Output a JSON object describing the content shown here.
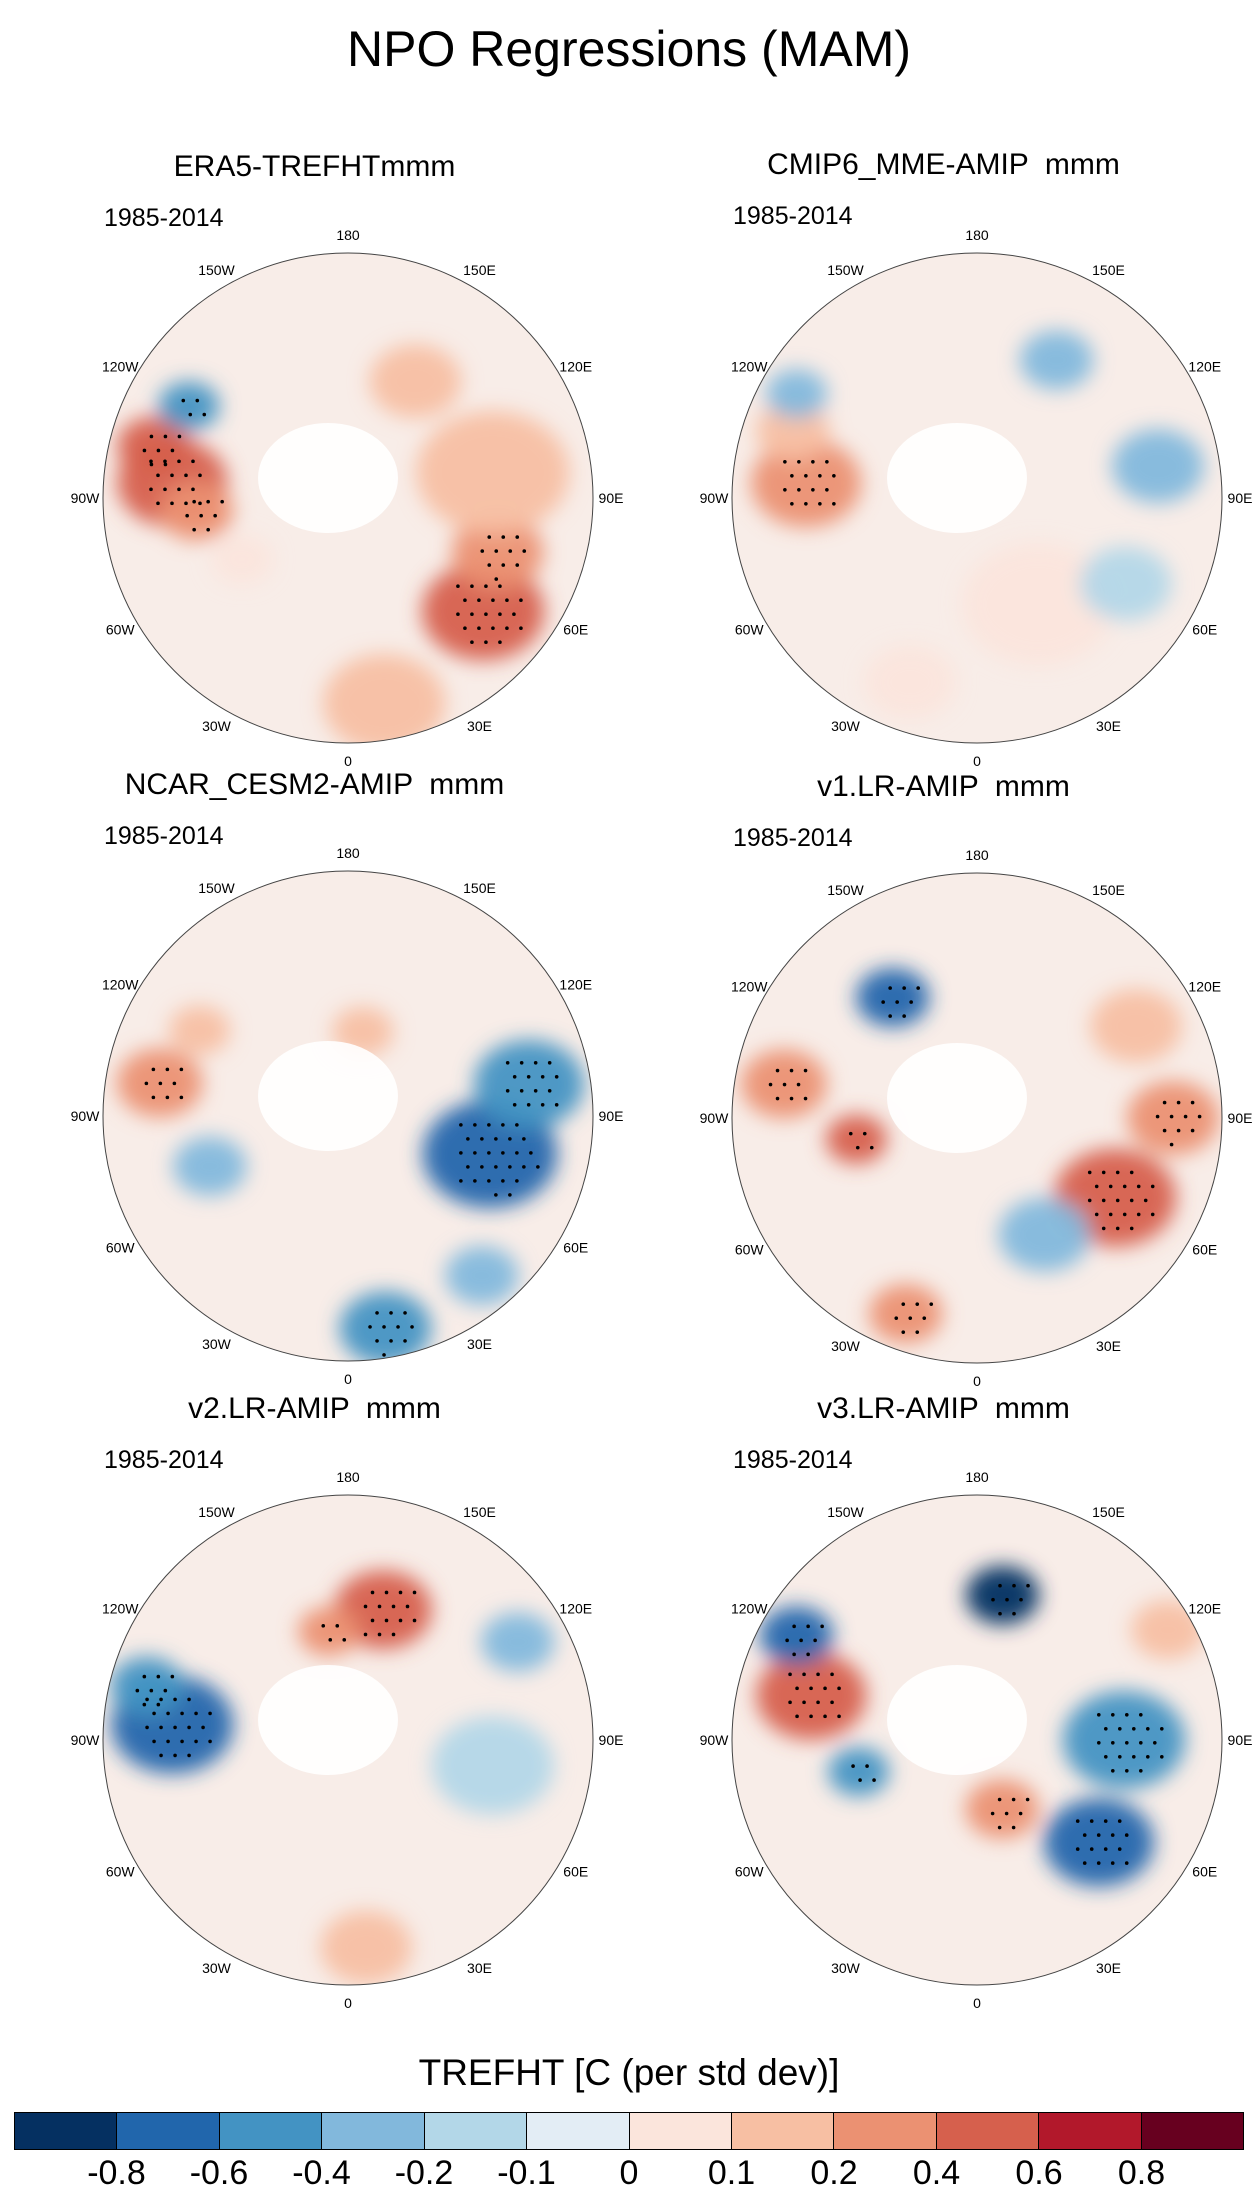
{
  "title": "NPO Regressions (MAM)",
  "panels": [
    {
      "id": "p1",
      "title": "ERA5-TREFHTmmm",
      "years": "1985-2014",
      "blobs": [
        {
          "lon": -95,
          "r": 0.72,
          "rad": 0.18,
          "v": 0.6
        },
        {
          "lon": -105,
          "r": 0.82,
          "rad": 0.12,
          "v": 0.6
        },
        {
          "lon": -85,
          "r": 0.62,
          "rad": 0.12,
          "v": 0.4
        },
        {
          "lon": -120,
          "r": 0.75,
          "rad": 0.1,
          "v": -0.4
        },
        {
          "lon": 50,
          "r": 0.72,
          "rad": 0.2,
          "v": 0.6
        },
        {
          "lon": 70,
          "r": 0.65,
          "rad": 0.15,
          "v": 0.4
        },
        {
          "lon": 100,
          "r": 0.6,
          "rad": 0.25,
          "v": 0.2
        },
        {
          "lon": 10,
          "r": 0.85,
          "rad": 0.2,
          "v": 0.2
        },
        {
          "lon": 150,
          "r": 0.55,
          "rad": 0.15,
          "v": 0.2
        },
        {
          "lon": -60,
          "r": 0.5,
          "rad": 0.1,
          "v": 0.1
        }
      ]
    },
    {
      "id": "p2",
      "title": "CMIP6_MME-AMIP  mmm",
      "years": "1985-2014",
      "blobs": [
        {
          "lon": -95,
          "r": 0.7,
          "rad": 0.18,
          "v": 0.4
        },
        {
          "lon": -110,
          "r": 0.8,
          "rad": 0.12,
          "v": 0.2
        },
        {
          "lon": -120,
          "r": 0.85,
          "rad": 0.1,
          "v": -0.2
        },
        {
          "lon": 150,
          "r": 0.65,
          "rad": 0.12,
          "v": -0.2
        },
        {
          "lon": 100,
          "r": 0.75,
          "rad": 0.15,
          "v": -0.2
        },
        {
          "lon": 30,
          "r": 0.5,
          "rad": 0.25,
          "v": 0.1
        },
        {
          "lon": 60,
          "r": 0.7,
          "rad": 0.15,
          "v": -0.1
        },
        {
          "lon": -20,
          "r": 0.8,
          "rad": 0.15,
          "v": 0.1
        }
      ]
    },
    {
      "id": "p3",
      "title": "NCAR_CESM2-AMIP  mmm",
      "years": "1985-2014",
      "blobs": [
        {
          "lon": -100,
          "r": 0.78,
          "rad": 0.14,
          "v": 0.4
        },
        {
          "lon": -120,
          "r": 0.7,
          "rad": 0.1,
          "v": 0.2
        },
        {
          "lon": -70,
          "r": 0.6,
          "rad": 0.12,
          "v": -0.2
        },
        {
          "lon": 75,
          "r": 0.6,
          "rad": 0.22,
          "v": -0.6
        },
        {
          "lon": 100,
          "r": 0.75,
          "rad": 0.18,
          "v": -0.4
        },
        {
          "lon": 10,
          "r": 0.88,
          "rad": 0.15,
          "v": -0.4
        },
        {
          "lon": 170,
          "r": 0.35,
          "rad": 0.1,
          "v": 0.2
        },
        {
          "lon": 40,
          "r": 0.85,
          "rad": 0.12,
          "v": -0.2
        }
      ]
    },
    {
      "id": "p4",
      "title": "v1.LR-AMIP  mmm",
      "years": "1985-2014",
      "blobs": [
        {
          "lon": -100,
          "r": 0.8,
          "rad": 0.14,
          "v": 0.4
        },
        {
          "lon": -80,
          "r": 0.5,
          "rad": 0.1,
          "v": 0.6
        },
        {
          "lon": -145,
          "r": 0.6,
          "rad": 0.12,
          "v": -0.6
        },
        {
          "lon": 60,
          "r": 0.65,
          "rad": 0.2,
          "v": 0.6
        },
        {
          "lon": 90,
          "r": 0.8,
          "rad": 0.15,
          "v": 0.4
        },
        {
          "lon": 120,
          "r": 0.75,
          "rad": 0.15,
          "v": 0.2
        },
        {
          "lon": -20,
          "r": 0.85,
          "rad": 0.12,
          "v": 0.4
        },
        {
          "lon": 30,
          "r": 0.55,
          "rad": 0.15,
          "v": -0.2
        }
      ]
    },
    {
      "id": "p5",
      "title": "v2.LR-AMIP  mmm",
      "years": "1985-2014",
      "blobs": [
        {
          "lon": -95,
          "r": 0.72,
          "rad": 0.2,
          "v": -0.6
        },
        {
          "lon": -105,
          "r": 0.85,
          "rad": 0.12,
          "v": -0.4
        },
        {
          "lon": 165,
          "r": 0.55,
          "rad": 0.16,
          "v": 0.6
        },
        {
          "lon": -170,
          "r": 0.45,
          "rad": 0.1,
          "v": 0.4
        },
        {
          "lon": 80,
          "r": 0.6,
          "rad": 0.2,
          "v": -0.1
        },
        {
          "lon": 120,
          "r": 0.8,
          "rad": 0.12,
          "v": -0.2
        },
        {
          "lon": 5,
          "r": 0.85,
          "rad": 0.15,
          "v": 0.2
        }
      ]
    },
    {
      "id": "p6",
      "title": "v3.LR-AMIP  mmm",
      "years": "1985-2014",
      "blobs": [
        {
          "lon": -105,
          "r": 0.7,
          "rad": 0.18,
          "v": 0.6
        },
        {
          "lon": -120,
          "r": 0.85,
          "rad": 0.12,
          "v": -0.6
        },
        {
          "lon": 170,
          "r": 0.6,
          "rad": 0.12,
          "v": -0.8
        },
        {
          "lon": 50,
          "r": 0.65,
          "rad": 0.18,
          "v": -0.6
        },
        {
          "lon": 90,
          "r": 0.6,
          "rad": 0.2,
          "v": -0.4
        },
        {
          "lon": 20,
          "r": 0.3,
          "rad": 0.12,
          "v": 0.4
        },
        {
          "lon": -75,
          "r": 0.5,
          "rad": 0.1,
          "v": -0.4
        },
        {
          "lon": 120,
          "r": 0.9,
          "rad": 0.12,
          "v": 0.2
        }
      ]
    }
  ],
  "lon_labels": [
    "180",
    "150E",
    "120E",
    "90E",
    "60E",
    "30E",
    "0",
    "30W",
    "60W",
    "90W",
    "120W",
    "150W"
  ],
  "colorbar": {
    "title": "TREFHT [C (per std dev)]",
    "ticks": [
      "-0.8",
      "-0.6",
      "-0.4",
      "-0.2",
      "-0.1",
      "0",
      "0.1",
      "0.2",
      "0.4",
      "0.6",
      "0.8"
    ],
    "colors": [
      "#053061",
      "#2166ac",
      "#4393c3",
      "#82b8dc",
      "#b3d7e8",
      "#e3edf5",
      "#fbe5dc",
      "#f7bfa3",
      "#eb9172",
      "#d6604d",
      "#b2182b",
      "#67001f"
    ]
  }
}
